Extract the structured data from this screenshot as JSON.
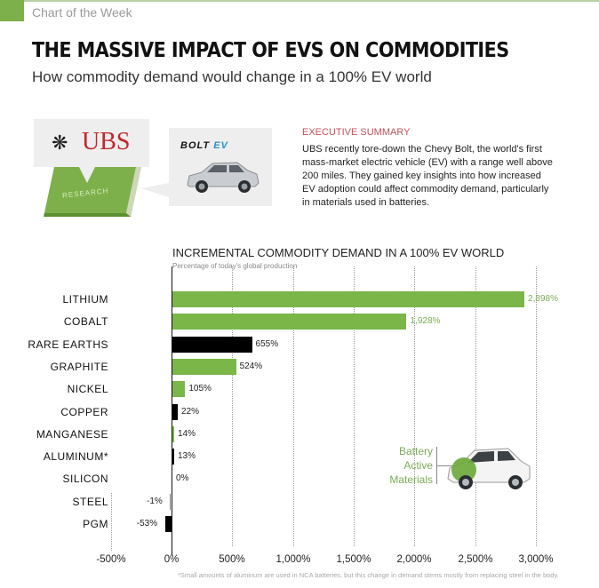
{
  "header": {
    "tag": "Chart of the Week",
    "title": "THE MASSIVE IMPACT OF EVS ON COMMODITIES",
    "subtitle": "How commodity demand would change in a 100% EV world"
  },
  "illustration": {
    "ubs_logo": "UBS",
    "ubs_icon": "keys-icon",
    "book_label": "RESEARCH",
    "bolt_logo_part1": "BOLT",
    "bolt_logo_part2": "EV"
  },
  "executive_summary": {
    "heading": "EXECUTIVE SUMMARY",
    "body": "UBS recently tore-down the Chevy Bolt, the world's first mass-market electric vehicle (EV) with a range well above 200 miles. They gained key insights into how increased EV adoption could affect commodity demand, particularly in materials used in batteries."
  },
  "colors": {
    "green": "#7ab648",
    "black": "#000000",
    "accent_red": "#c0505a",
    "ubs_red": "#c0282e"
  },
  "chart_data": {
    "type": "bar",
    "orientation": "horizontal",
    "title": "INCREMENTAL COMMODITY DEMAND IN A 100% EV WORLD",
    "subtitle": "Percentage of today's global production",
    "xlabel": "",
    "ylabel": "",
    "xlim": [
      -500,
      3000
    ],
    "xticks": [
      "-500%",
      "0%",
      "500%",
      "1,000%",
      "1,500%",
      "2,000%",
      "2,500%",
      "3,000%"
    ],
    "grid": "vertical dotted",
    "categories": [
      "LITHIUM",
      "COBALT",
      "RARE EARTHS",
      "GRAPHITE",
      "NICKEL",
      "COPPER",
      "MANGANESE",
      "ALUMINUM*",
      "SILICON",
      "STEEL",
      "PGM"
    ],
    "values": [
      2898,
      1928,
      655,
      524,
      105,
      22,
      14,
      13,
      0,
      -1,
      -53
    ],
    "value_labels": [
      "2,898%",
      "1,928%",
      "655%",
      "524%",
      "105%",
      "22%",
      "14%",
      "13%",
      "0%",
      "-1%",
      "-53%"
    ],
    "bar_colors": [
      "green",
      "green",
      "black",
      "green",
      "green",
      "black",
      "green",
      "black",
      "black",
      "black",
      "black"
    ],
    "legend": {
      "green": "Battery Active Materials"
    },
    "annotation": "Battery Active Materials",
    "footnote": "*Small amounts of aluminum are used in NCA batteries, but this change in demand stems mostly from replacing steel in the body."
  }
}
